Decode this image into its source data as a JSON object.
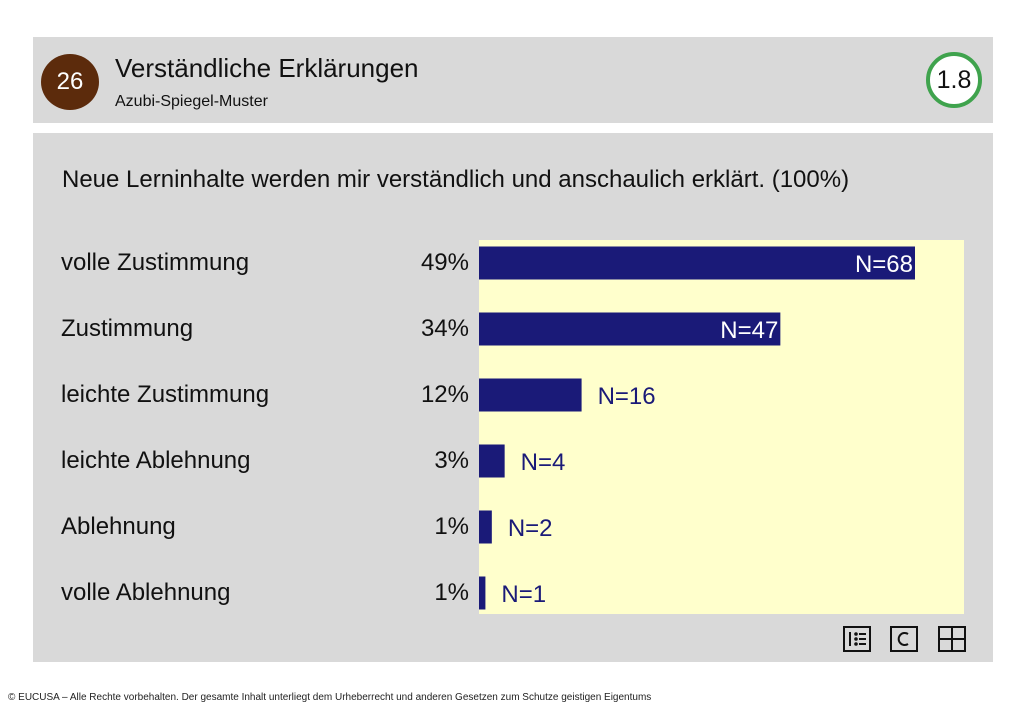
{
  "header": {
    "number": "26",
    "title": "Verständliche Erklärungen",
    "subtitle": "Azubi-Spiegel-Muster",
    "score": "1.8"
  },
  "question": "Neue Lerninhalte werden mir verständlich und anschaulich erklärt. (100%)",
  "rows": [
    {
      "label": "volle Zustimmung",
      "percent": "49%"
    },
    {
      "label": "Zustimmung",
      "percent": "34%"
    },
    {
      "label": "leichte Zustimmung",
      "percent": "12%"
    },
    {
      "label": "leichte Ablehnung",
      "percent": "3%"
    },
    {
      "label": "Ablehnung",
      "percent": "1%"
    },
    {
      "label": "volle Ablehnung",
      "percent": "1%"
    }
  ],
  "chart_data": {
    "type": "bar",
    "orientation": "horizontal",
    "categories": [
      "volle Zustimmung",
      "Zustimmung",
      "leichte Zustimmung",
      "leichte Ablehnung",
      "Ablehnung",
      "volle Ablehnung"
    ],
    "values": [
      68,
      47,
      16,
      4,
      2,
      1
    ],
    "percents": [
      49,
      34,
      12,
      3,
      1,
      1
    ],
    "value_labels": [
      "N=68",
      "N=47",
      "N=16",
      "N=4",
      "N=2",
      "N=1"
    ],
    "bar_color": "#1a1a78",
    "background_color": "#ffffcc"
  },
  "icons": [
    "list-icon",
    "c-icon",
    "grid-icon"
  ],
  "footer": "© EUCUSA – Alle Rechte vorbehalten. Der gesamte Inhalt unterliegt dem Urheberrecht und anderen Gesetzen zum Schutze geistigen Eigentums"
}
